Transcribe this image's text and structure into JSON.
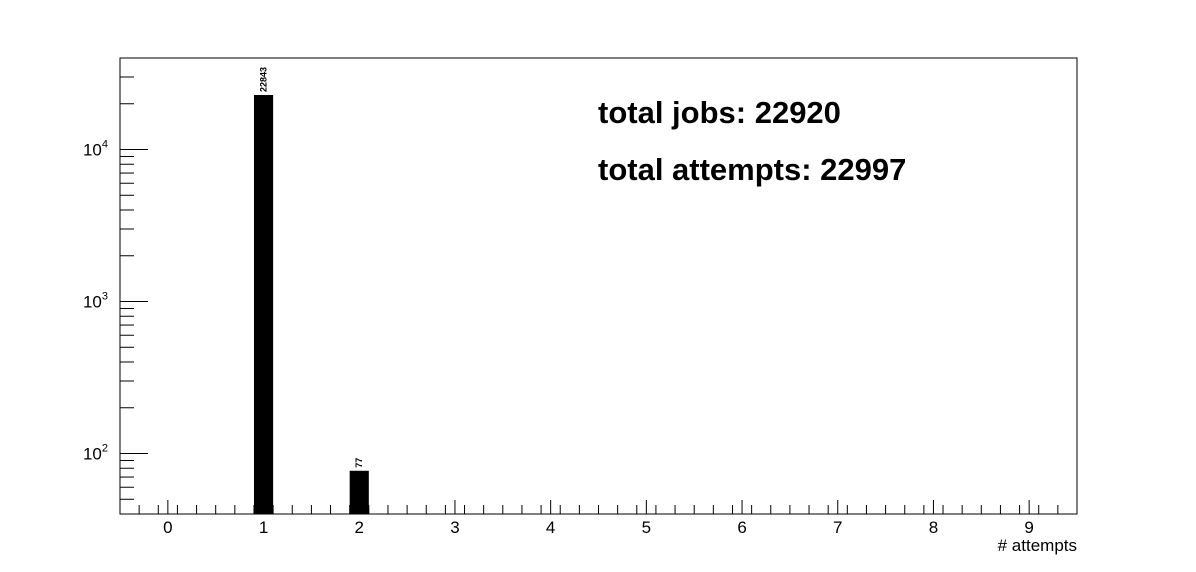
{
  "chart_data": {
    "type": "bar",
    "title": "",
    "xlabel": "# attempts",
    "ylabel": "",
    "yscale": "log",
    "xlim": [
      -0.5,
      9.5
    ],
    "ylim": [
      40,
      40000
    ],
    "grid": false,
    "categories": [
      "0",
      "1",
      "2",
      "3",
      "4",
      "5",
      "6",
      "7",
      "8",
      "9"
    ],
    "x_ticks": [
      0,
      1,
      2,
      3,
      4,
      5,
      6,
      7,
      8,
      9
    ],
    "y_ticks": [
      {
        "value": 100,
        "base": "10",
        "exp": "2"
      },
      {
        "value": 1000,
        "base": "10",
        "exp": "3"
      },
      {
        "value": 10000,
        "base": "10",
        "exp": "4"
      }
    ],
    "bars": [
      {
        "x": 1,
        "value": 22843,
        "label": "22843"
      },
      {
        "x": 2,
        "value": 77,
        "label": "77"
      }
    ],
    "bar_color": "#000000",
    "annotations": [
      "total jobs: 22920",
      "total attempts: 22997"
    ]
  }
}
